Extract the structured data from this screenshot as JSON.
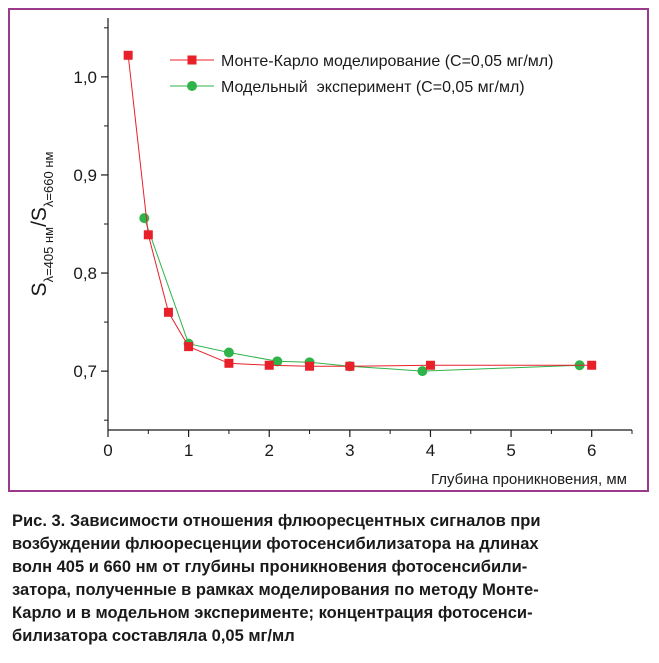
{
  "colors": {
    "frame": "#9b3a8c",
    "series_monte_carlo": "#e8202a",
    "series_experiment": "#2fb34a",
    "axis": "#1a1a1a"
  },
  "chart_data": {
    "type": "line",
    "xlabel": "Глубина проникновения, мм",
    "ylabel": {
      "s1": "S",
      "sub1": "λ=405 нм",
      "slash": "/S",
      "sub2": "λ=660 нм"
    },
    "xlim": [
      0,
      6.5
    ],
    "ylim": [
      0.64,
      1.06
    ],
    "x_ticks": [
      "0",
      "1",
      "2",
      "3",
      "4",
      "5",
      "6"
    ],
    "y_ticks": [
      "0,7",
      "0,8",
      "0,9",
      "1,0"
    ],
    "y_tick_values": [
      0.7,
      0.8,
      0.9,
      1.0
    ],
    "legend_position": "top-right",
    "grid": false,
    "series": [
      {
        "name": "Монте-Карло моделирование (С=0,05 мг/мл)",
        "marker": "square",
        "x": [
          0.25,
          0.5,
          0.75,
          1.0,
          1.5,
          2.0,
          2.5,
          3.0,
          4.0,
          6.0
        ],
        "y": [
          1.022,
          0.839,
          0.76,
          0.725,
          0.708,
          0.706,
          0.705,
          0.705,
          0.706,
          0.706
        ]
      },
      {
        "name": "Модельный  эксперимент (С=0,05 мг/мл)",
        "marker": "circle",
        "x": [
          0.45,
          1.0,
          1.5,
          2.1,
          2.5,
          3.0,
          3.9,
          5.85
        ],
        "y": [
          0.856,
          0.728,
          0.719,
          0.71,
          0.709,
          0.705,
          0.7,
          0.706
        ]
      }
    ]
  },
  "caption": {
    "lines": [
      "Рис. 3. Зависимости отношения флюоресцентных сигналов при",
      "возбуждении флюоресценции фотосенсибилизатора на длинах",
      "волн 405 и 660 нм от глубины проникновения фотосенсибили-",
      "затора, полученные в рамках моделирования по методу Монте-",
      "Карло и в модельном эксперименте; концентрация фотосенси-",
      "билизатора составляла 0,05 мг/мл"
    ]
  }
}
